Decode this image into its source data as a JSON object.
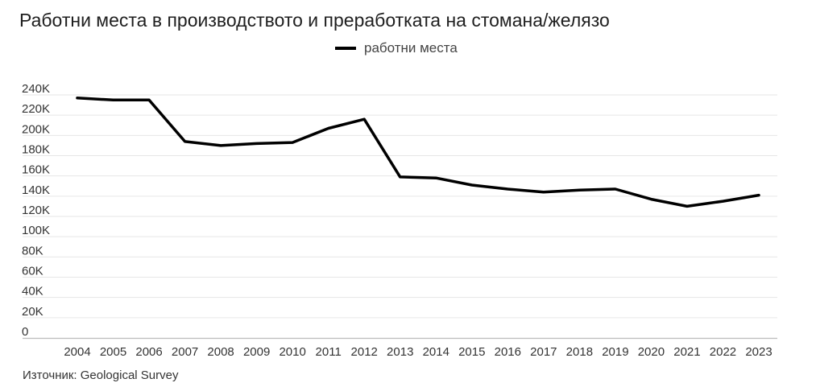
{
  "chart_data": {
    "type": "line",
    "title": "Работни места в производството и преработката на стомана/желязо",
    "x": [
      "2004",
      "2005",
      "2006",
      "2007",
      "2008",
      "2009",
      "2010",
      "2011",
      "2012",
      "2013",
      "2014",
      "2015",
      "2016",
      "2017",
      "2018",
      "2019",
      "2020",
      "2021",
      "2022",
      "2023"
    ],
    "series": [
      {
        "name": "работни места",
        "color": "#000000",
        "values": [
          237000,
          235000,
          235000,
          194000,
          190000,
          192000,
          193000,
          207000,
          216000,
          159000,
          158000,
          151000,
          147000,
          144000,
          146000,
          147000,
          137000,
          130000,
          135000,
          141000
        ]
      }
    ],
    "yticks": [
      {
        "value": 0,
        "label": "0"
      },
      {
        "value": 20000,
        "label": "20K"
      },
      {
        "value": 40000,
        "label": "40K"
      },
      {
        "value": 60000,
        "label": "60K"
      },
      {
        "value": 80000,
        "label": "80K"
      },
      {
        "value": 100000,
        "label": "100K"
      },
      {
        "value": 120000,
        "label": "120K"
      },
      {
        "value": 140000,
        "label": "140K"
      },
      {
        "value": 160000,
        "label": "160K"
      },
      {
        "value": 180000,
        "label": "180K"
      },
      {
        "value": 200000,
        "label": "200K"
      },
      {
        "value": 220000,
        "label": "220K"
      },
      {
        "value": 240000,
        "label": "240K"
      }
    ],
    "ylim": [
      0,
      240000
    ],
    "grid": true,
    "legend_position": "top-center",
    "source": "Източник: Geological Survey"
  }
}
